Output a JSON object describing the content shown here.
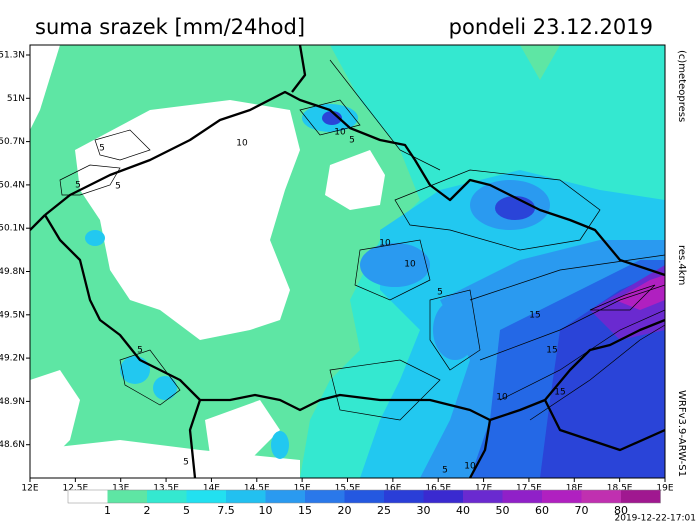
{
  "header": {
    "title": "suma srazek [mm/24hod]",
    "date": "pondeli 23.12.2019"
  },
  "map": {
    "lat_labels": [
      "51.3N",
      "51N",
      "50.7N",
      "50.4N",
      "50.1N",
      "49.8N",
      "49.5N",
      "49.2N",
      "48.9N",
      "48.6N"
    ],
    "lon_labels": [
      "12E",
      "12.5E",
      "13E",
      "13.5E",
      "14E",
      "14.5E",
      "15E",
      "15.5E",
      "16E",
      "16.5E",
      "17E",
      "17.5E",
      "18E",
      "18.5E",
      "19E"
    ],
    "contour_labels": [
      "5",
      "5",
      "5",
      "10",
      "5",
      "10",
      "10",
      "5",
      "10",
      "15",
      "15",
      "10",
      "15",
      "5",
      "5",
      "10",
      "5"
    ]
  },
  "colorbar": {
    "labels": [
      "1",
      "2",
      "5",
      "7.5",
      "10",
      "15",
      "20",
      "25",
      "30",
      "40",
      "50",
      "60",
      "70",
      "80"
    ]
  },
  "credits": {
    "copyright": "(c)meteopress",
    "resolution": "res.4km",
    "model": "WRFv3.9-ARW-S1",
    "run_time": "2019-12-22-17:01"
  }
}
